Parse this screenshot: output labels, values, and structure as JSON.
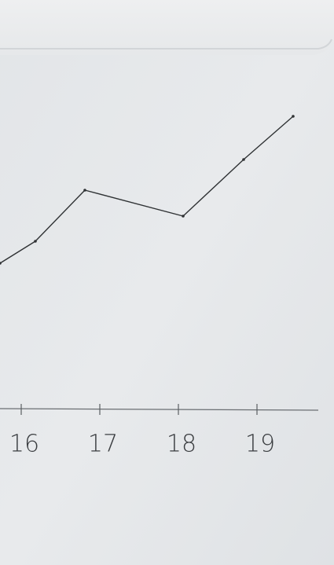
{
  "chart_data": {
    "type": "line",
    "x": [
      15.73,
      16.18,
      16.81,
      18.06,
      18.83,
      19.46
    ],
    "values": [
      1.85,
      2.13,
      2.78,
      2.45,
      3.17,
      3.72
    ],
    "color": "#2f3234",
    "xlim": [
      15.73,
      19.78
    ],
    "xticks": [
      16,
      17,
      18,
      19
    ],
    "ylim": [
      0,
      5
    ],
    "grid": false
  }
}
